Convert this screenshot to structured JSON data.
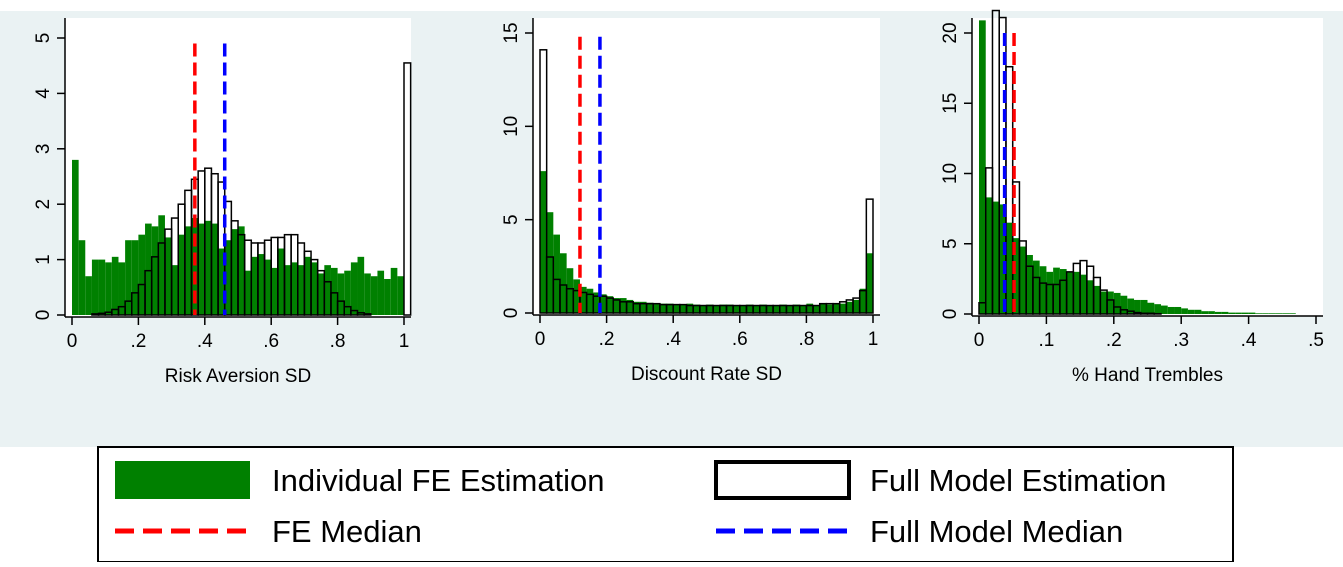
{
  "colors": {
    "fe_fill": "#008000",
    "full_outline": "#000000",
    "fe_median": "#ff0000",
    "full_median": "#0000ff",
    "panel_bg": "#eaf2f3",
    "plot_bg": "#ffffff"
  },
  "legend": {
    "fe_label": "Individual FE Estimation",
    "full_label": "Full Model Estimation",
    "fe_median_label": "FE Median",
    "full_median_label": "Full Model Median"
  },
  "chart_data": [
    {
      "type": "bar",
      "xlabel": "Risk Aversion SD",
      "xlim": [
        0,
        1
      ],
      "ylim": [
        0,
        5
      ],
      "xticks": [
        0,
        0.2,
        0.4,
        0.6,
        0.8,
        1
      ],
      "xtick_labels": [
        "0",
        ".2",
        ".4",
        ".6",
        ".8",
        "1"
      ],
      "yticks": [
        0,
        1,
        2,
        3,
        4,
        5
      ],
      "ytick_labels": [
        "0",
        "1",
        "2",
        "3",
        "4",
        "5"
      ],
      "medians": {
        "fe": 0.37,
        "full": 0.46
      },
      "median_top": 4.9,
      "bin_width": 0.02,
      "series": [
        {
          "name": "Individual FE Estimation",
          "style": "filled",
          "bin_start": 0,
          "values": [
            2.8,
            1.35,
            0.7,
            1.0,
            1.0,
            0.95,
            1.05,
            0.95,
            1.35,
            1.35,
            1.45,
            1.65,
            1.6,
            1.8,
            1.4,
            0.9,
            1.45,
            1.6,
            1.75,
            1.65,
            1.7,
            1.65,
            1.2,
            1.35,
            1.55,
            1.6,
            0.8,
            1.05,
            1.1,
            1.0,
            0.85,
            1.2,
            0.9,
            0.95,
            0.9,
            1.05,
            0.95,
            0.75,
            0.9,
            0.85,
            0.75,
            0.8,
            0.95,
            1.05,
            0.75,
            0.7,
            0.8,
            0.65,
            0.85,
            0.7
          ]
        },
        {
          "name": "Full Model Estimation",
          "style": "outline",
          "bin_start": 0.06,
          "values": [
            0.02,
            0.03,
            0.05,
            0.1,
            0.15,
            0.25,
            0.4,
            0.55,
            0.8,
            1.05,
            1.3,
            1.55,
            1.75,
            2.0,
            2.25,
            2.45,
            2.6,
            2.65,
            2.55,
            2.4,
            2.05,
            1.7,
            1.45,
            1.35,
            1.3,
            1.3,
            1.35,
            1.4,
            1.4,
            1.45,
            1.45,
            1.3,
            1.15,
            1.0,
            0.8,
            0.6,
            0.4,
            0.25,
            0.15,
            0.08,
            0.04,
            0.02,
            0,
            0,
            0,
            0,
            0,
            4.55
          ]
        }
      ]
    },
    {
      "type": "bar",
      "xlabel": "Discount Rate SD",
      "xlim": [
        0,
        1
      ],
      "ylim": [
        0,
        15
      ],
      "xticks": [
        0,
        0.2,
        0.4,
        0.6,
        0.8,
        1
      ],
      "xtick_labels": [
        "0",
        ".2",
        ".4",
        ".6",
        ".8",
        "1"
      ],
      "yticks": [
        0,
        5,
        10,
        15
      ],
      "ytick_labels": [
        "0",
        "5",
        "10",
        "15"
      ],
      "medians": {
        "fe": 0.12,
        "full": 0.18
      },
      "median_top": 14.8,
      "bin_width": 0.02,
      "series": [
        {
          "name": "Individual FE Estimation",
          "style": "filled",
          "bin_start": 0,
          "values": [
            7.6,
            5.4,
            4.2,
            3.2,
            2.4,
            1.8,
            1.4,
            1.3,
            1.1,
            1.0,
            0.9,
            0.8,
            0.8,
            0.7,
            0.6,
            0.6,
            0.55,
            0.5,
            0.5,
            0.5,
            0.45,
            0.45,
            0.5,
            0.45,
            0.4,
            0.45,
            0.4,
            0.45,
            0.45,
            0.4,
            0.4,
            0.45,
            0.4,
            0.45,
            0.4,
            0.4,
            0.45,
            0.4,
            0.45,
            0.4,
            0.5,
            0.4,
            0.5,
            0.45,
            0.5,
            0.5,
            0.6,
            0.7,
            1.3,
            3.2
          ]
        },
        {
          "name": "Full Model Estimation",
          "style": "outline",
          "bin_start": 0,
          "values": [
            14.1,
            3.0,
            1.8,
            1.5,
            1.3,
            1.2,
            1.1,
            1.0,
            0.9,
            0.9,
            0.8,
            0.7,
            0.6,
            0.6,
            0.5,
            0.5,
            0.5,
            0.5,
            0.45,
            0.45,
            0.45,
            0.45,
            0.4,
            0.4,
            0.4,
            0.4,
            0.4,
            0.4,
            0.4,
            0.4,
            0.4,
            0.4,
            0.4,
            0.4,
            0.4,
            0.4,
            0.4,
            0.4,
            0.4,
            0.4,
            0.4,
            0.4,
            0.5,
            0.5,
            0.5,
            0.6,
            0.7,
            0.8,
            1.2,
            6.1
          ]
        }
      ]
    },
    {
      "type": "bar",
      "xlabel": "% Hand Trembles",
      "xlim": [
        0,
        0.5
      ],
      "ylim": [
        0,
        20
      ],
      "xticks": [
        0,
        0.1,
        0.2,
        0.3,
        0.4,
        0.5
      ],
      "xtick_labels": [
        "0",
        ".1",
        ".2",
        ".3",
        ".4",
        ".5"
      ],
      "yticks": [
        0,
        5,
        10,
        15,
        20
      ],
      "ytick_labels": [
        "0",
        "5",
        "10",
        "15",
        "20"
      ],
      "medians": {
        "fe": 0.052,
        "full": 0.038
      },
      "median_top": 20,
      "bin_width": 0.01,
      "series": [
        {
          "name": "Individual FE Estimation",
          "style": "filled",
          "bin_start": 0,
          "values": [
            20.9,
            8.3,
            8.0,
            7.8,
            6.5,
            5.4,
            4.8,
            4.2,
            3.8,
            3.4,
            3.0,
            3.3,
            3.2,
            3.0,
            3.0,
            2.8,
            2.4,
            2.0,
            1.6,
            1.6,
            1.5,
            1.3,
            1.1,
            1.0,
            1.0,
            0.8,
            0.7,
            0.6,
            0.5,
            0.5,
            0.4,
            0.3,
            0.3,
            0.2,
            0.2,
            0.15,
            0.15,
            0.1,
            0.1,
            0.1,
            0.1,
            0.05,
            0.05,
            0.05,
            0.05,
            0.05,
            0.05
          ]
        },
        {
          "name": "Full Model Estimation",
          "style": "outline",
          "bin_start": 0,
          "values": [
            0.8,
            10.4,
            21.6,
            21.1,
            17.6,
            9.4,
            5.2,
            3.4,
            2.6,
            2.2,
            2.1,
            2.1,
            2.4,
            3.0,
            3.6,
            3.8,
            3.4,
            2.6,
            1.7,
            1.0,
            0.5,
            0.3,
            0.2,
            0.1,
            0.05,
            0.05,
            0.02
          ]
        }
      ]
    }
  ]
}
